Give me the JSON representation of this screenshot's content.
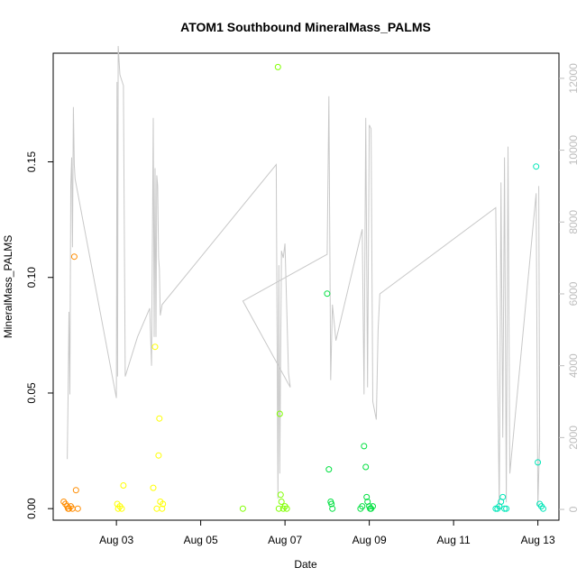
{
  "chart_data": {
    "type": "scatter",
    "title": "ATOM1 Southbound MineralMass_PALMS",
    "xlabel": "Date",
    "ylabel": "MineralMass_PALMS",
    "x_axis": {
      "type": "date",
      "range": [
        "2016-08-01T12:00",
        "2016-08-13T12:00"
      ],
      "ticks": [
        "2016-08-03",
        "2016-08-05",
        "2016-08-07",
        "2016-08-09",
        "2016-08-11",
        "2016-08-13"
      ],
      "tick_labels": [
        "Aug 03",
        "Aug 05",
        "Aug 07",
        "Aug 09",
        "Aug 11",
        "Aug 13"
      ]
    },
    "y_left": {
      "range": [
        -0.005,
        0.197
      ],
      "ticks": [
        0.0,
        0.05,
        0.1,
        0.15
      ],
      "tick_labels": [
        "0.00",
        "0.05",
        "0.10",
        "0.15"
      ]
    },
    "y_right": {
      "range": [
        -300,
        12700
      ],
      "ticks": [
        0,
        2000,
        4000,
        6000,
        8000,
        10000,
        12000
      ],
      "tick_labels": [
        "0",
        "2000",
        "4000",
        "6000",
        "8000",
        "10000",
        "12000"
      ],
      "color": "#bdbdbd",
      "label": ""
    },
    "grid": false,
    "series": [
      {
        "type": "line",
        "axis": "right",
        "color": "#c8c8c8",
        "points": [
          [
            "2016-08-01T20:00",
            1400
          ],
          [
            "2016-08-01T20:30",
            3300
          ],
          [
            "2016-08-01T21:00",
            5500
          ],
          [
            "2016-08-01T21:30",
            3200
          ],
          [
            "2016-08-01T22:00",
            9000
          ],
          [
            "2016-08-01T22:30",
            9800
          ],
          [
            "2016-08-01T23:00",
            7300
          ],
          [
            "2016-08-01T23:30",
            11200
          ],
          [
            "2016-08-02T00:00",
            9600
          ],
          [
            "2016-08-02T00:30",
            9200
          ],
          [
            "2016-08-03T00:00",
            3100
          ],
          [
            "2016-08-03T00:20",
            11900
          ],
          [
            "2016-08-03T00:40",
            3700
          ],
          [
            "2016-08-03T01:00",
            12900
          ],
          [
            "2016-08-03T02:00",
            12100
          ],
          [
            "2016-08-03T04:00",
            11800
          ],
          [
            "2016-08-03T05:00",
            3700
          ],
          [
            "2016-08-03T12:00",
            4800
          ],
          [
            "2016-08-03T19:00",
            5600
          ],
          [
            "2016-08-03T20:00",
            4000
          ],
          [
            "2016-08-03T21:00",
            10900
          ],
          [
            "2016-08-03T21:30",
            4800
          ],
          [
            "2016-08-03T22:00",
            9500
          ],
          [
            "2016-08-03T22:30",
            4800
          ],
          [
            "2016-08-03T23:00",
            9300
          ],
          [
            "2016-08-03T23:30",
            9000
          ],
          [
            "2016-08-04T00:00",
            7000
          ],
          [
            "2016-08-04T00:30",
            6700
          ],
          [
            "2016-08-04T01:00",
            5400
          ],
          [
            "2016-08-04T02:00",
            5700
          ],
          [
            "2016-08-06T19:00",
            9600
          ],
          [
            "2016-08-06T20:00",
            300
          ],
          [
            "2016-08-06T20:30",
            6800
          ],
          [
            "2016-08-06T21:00",
            1000
          ],
          [
            "2016-08-06T22:00",
            7200
          ],
          [
            "2016-08-06T23:00",
            7000
          ],
          [
            "2016-08-07T00:00",
            7400
          ],
          [
            "2016-08-07T02:00",
            3800
          ],
          [
            "2016-08-07T03:00",
            3400
          ],
          [
            "2016-08-06T00:00",
            5800
          ],
          [
            "2016-08-08T00:00",
            7100
          ],
          [
            "2016-08-08T01:00",
            11500
          ],
          [
            "2016-08-08T02:00",
            3600
          ],
          [
            "2016-08-08T03:00",
            5700
          ],
          [
            "2016-08-08T04:00",
            5200
          ],
          [
            "2016-08-08T05:00",
            4700
          ],
          [
            "2016-08-08T20:00",
            7800
          ],
          [
            "2016-08-08T21:00",
            3200
          ],
          [
            "2016-08-08T22:00",
            10900
          ],
          [
            "2016-08-08T23:00",
            3400
          ],
          [
            "2016-08-09T00:00",
            10700
          ],
          [
            "2016-08-09T01:00",
            10600
          ],
          [
            "2016-08-09T02:00",
            3000
          ],
          [
            "2016-08-09T04:00",
            2500
          ],
          [
            "2016-08-09T05:00",
            5000
          ],
          [
            "2016-08-09T06:00",
            6000
          ],
          [
            "2016-08-12T00:00",
            8400
          ],
          [
            "2016-08-12T02:00",
            0
          ],
          [
            "2016-08-12T03:00",
            9100
          ],
          [
            "2016-08-12T04:00",
            2000
          ],
          [
            "2016-08-12T05:00",
            9800
          ],
          [
            "2016-08-12T06:00",
            200
          ],
          [
            "2016-08-12T07:00",
            10100
          ],
          [
            "2016-08-12T08:00",
            1000
          ],
          [
            "2016-08-12T23:00",
            8800
          ],
          [
            "2016-08-13T00:00",
            100
          ],
          [
            "2016-08-13T01:00",
            1900
          ],
          [
            "2016-08-13T00:30",
            9000
          ]
        ]
      },
      {
        "type": "scatter",
        "axis": "left",
        "color": "#ff8c00",
        "points": [
          [
            "2016-08-01T18:00",
            0.003
          ],
          [
            "2016-08-01T19:00",
            0.002
          ],
          [
            "2016-08-01T20:00",
            0.001
          ],
          [
            "2016-08-01T21:00",
            0.0
          ],
          [
            "2016-08-01T22:00",
            0.001
          ],
          [
            "2016-08-01T23:00",
            0.0
          ],
          [
            "2016-08-02T00:00",
            0.109
          ],
          [
            "2016-08-02T01:00",
            0.008
          ],
          [
            "2016-08-02T02:00",
            0.0
          ],
          [
            "2016-08-01T20:30",
            0.0
          ]
        ]
      },
      {
        "type": "scatter",
        "axis": "left",
        "color": "#ffff00",
        "points": [
          [
            "2016-08-03T00:30",
            0.002
          ],
          [
            "2016-08-03T01:00",
            0.0
          ],
          [
            "2016-08-03T02:00",
            0.001
          ],
          [
            "2016-08-03T03:00",
            0.0
          ],
          [
            "2016-08-03T04:00",
            0.01
          ],
          [
            "2016-08-03T21:00",
            0.009
          ],
          [
            "2016-08-03T22:00",
            0.07
          ],
          [
            "2016-08-03T23:00",
            0.0
          ],
          [
            "2016-08-04T00:00",
            0.023
          ],
          [
            "2016-08-04T00:30",
            0.039
          ],
          [
            "2016-08-04T01:00",
            0.003
          ],
          [
            "2016-08-04T02:00",
            0.0
          ],
          [
            "2016-08-04T02:30",
            0.002
          ]
        ]
      },
      {
        "type": "scatter",
        "axis": "left",
        "color": "#80ff00",
        "points": [
          [
            "2016-08-06T00:00",
            0.0
          ],
          [
            "2016-08-06T20:00",
            0.191
          ],
          [
            "2016-08-06T21:00",
            0.041
          ],
          [
            "2016-08-06T21:30",
            0.006
          ],
          [
            "2016-08-06T22:00",
            0.003
          ],
          [
            "2016-08-06T20:30",
            0.0
          ],
          [
            "2016-08-06T23:00",
            0.0
          ],
          [
            "2016-08-07T00:00",
            0.001
          ],
          [
            "2016-08-07T01:00",
            0.0
          ]
        ]
      },
      {
        "type": "scatter",
        "axis": "left",
        "color": "#00e040",
        "points": [
          [
            "2016-08-08T00:00",
            0.093
          ],
          [
            "2016-08-08T01:00",
            0.017
          ],
          [
            "2016-08-08T02:00",
            0.003
          ],
          [
            "2016-08-08T02:30",
            0.002
          ],
          [
            "2016-08-08T03:00",
            0.0
          ],
          [
            "2016-08-08T19:00",
            0.0
          ],
          [
            "2016-08-08T20:00",
            0.001
          ],
          [
            "2016-08-08T21:00",
            0.027
          ],
          [
            "2016-08-08T22:00",
            0.018
          ],
          [
            "2016-08-08T22:30",
            0.005
          ],
          [
            "2016-08-08T23:00",
            0.003
          ],
          [
            "2016-08-09T00:00",
            0.001
          ],
          [
            "2016-08-09T00:30",
            0.0
          ],
          [
            "2016-08-09T01:00",
            0.0
          ],
          [
            "2016-08-09T02:00",
            0.001
          ]
        ]
      },
      {
        "type": "scatter",
        "axis": "left",
        "color": "#00e6b8",
        "points": [
          [
            "2016-08-12T00:00",
            0.0
          ],
          [
            "2016-08-12T01:00",
            0.0
          ],
          [
            "2016-08-12T02:00",
            0.001
          ],
          [
            "2016-08-12T03:00",
            0.003
          ],
          [
            "2016-08-12T04:00",
            0.005
          ],
          [
            "2016-08-12T05:00",
            0.0
          ],
          [
            "2016-08-12T06:00",
            0.0
          ],
          [
            "2016-08-12T23:00",
            0.148
          ],
          [
            "2016-08-13T00:00",
            0.02
          ],
          [
            "2016-08-13T01:00",
            0.002
          ],
          [
            "2016-08-13T02:00",
            0.001
          ],
          [
            "2016-08-13T03:00",
            0.0
          ]
        ]
      }
    ]
  }
}
